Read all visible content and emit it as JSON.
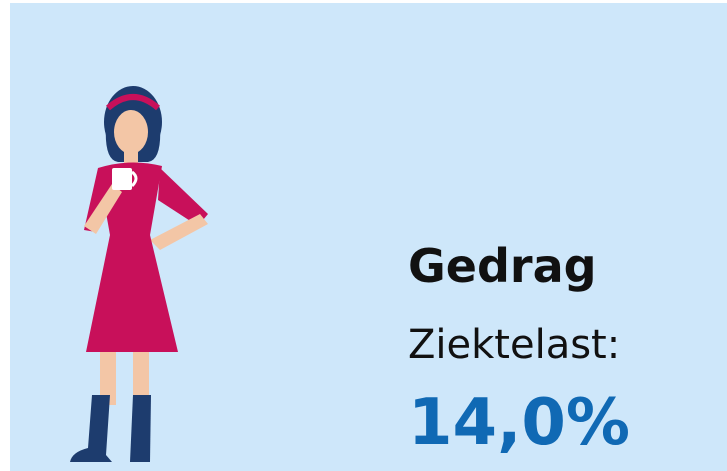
{
  "panel": {
    "title": "Gedrag",
    "label": "Ziektelast:",
    "value": "14,0%"
  }
}
